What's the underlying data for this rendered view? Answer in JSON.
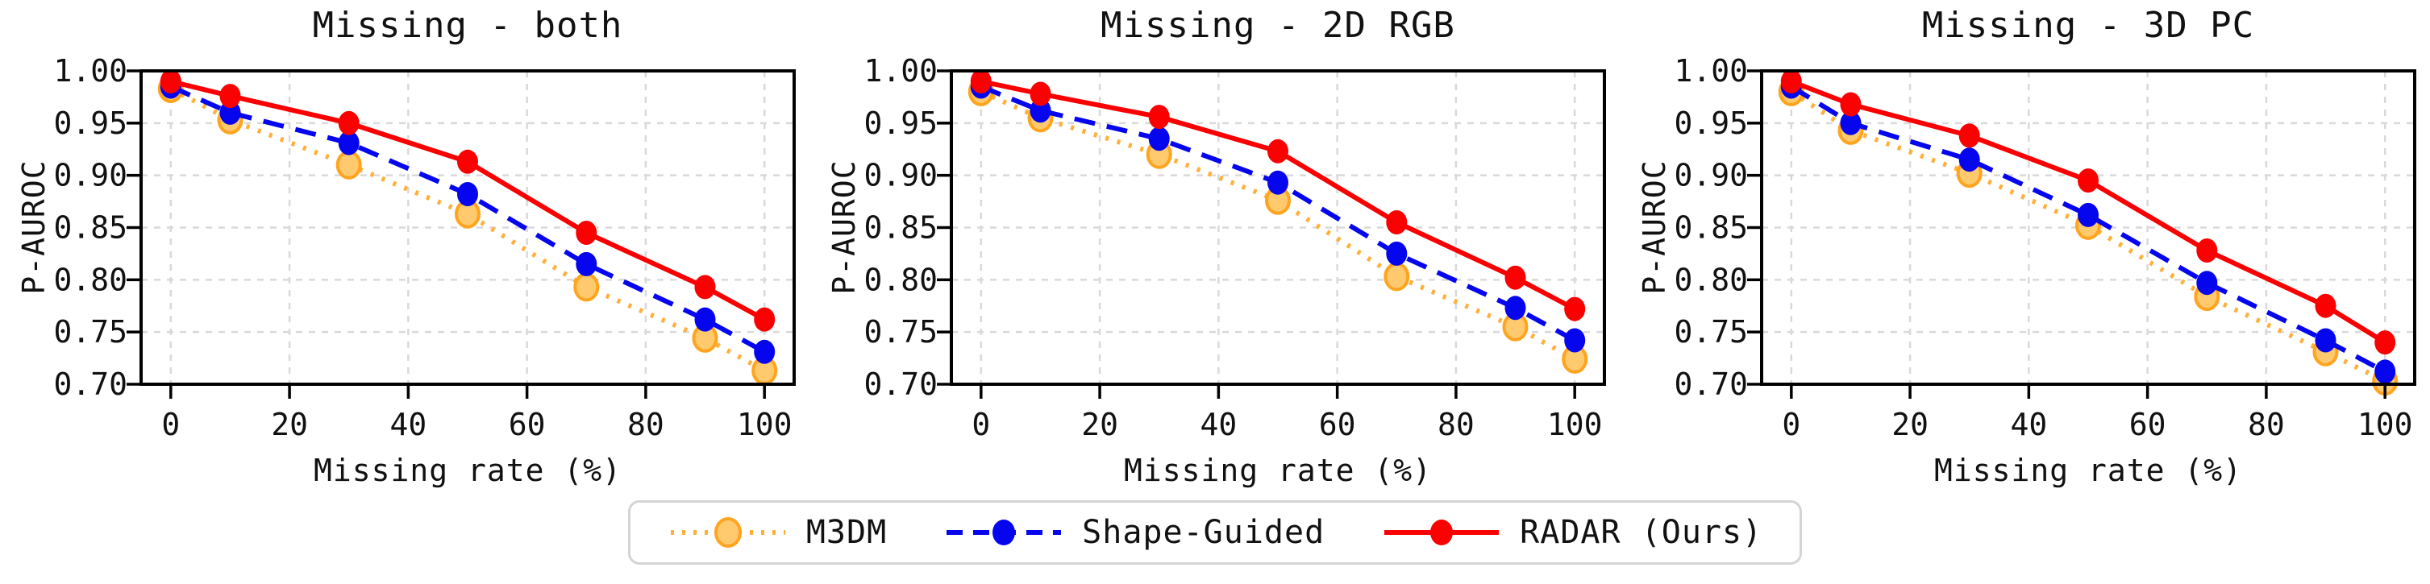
{
  "figure": {
    "background": "#ffffff",
    "grid_color": "#d9d9d9",
    "spine_color": "#000000",
    "ylabel": "P-AUROC",
    "xlabel": "Missing rate (%)"
  },
  "legend": {
    "position": "below-figure-center",
    "items": [
      {
        "label": "M3DM",
        "line_color": "#ffb03a",
        "dash": "dotted",
        "marker_fill": "#ffc96e",
        "marker_edge": "#ffa41f"
      },
      {
        "label": "Shape-Guided",
        "line_color": "#0505ee",
        "dash": "dashed",
        "marker_fill": "#0505ee",
        "marker_edge": ""
      },
      {
        "label": "RADAR (Ours)",
        "line_color": "#fa0000",
        "dash": "solid",
        "marker_fill": "#fa0000",
        "marker_edge": ""
      }
    ]
  },
  "chart_data": [
    {
      "type": "line",
      "title": "Missing - both",
      "xlabel": "Missing rate (%)",
      "ylabel": "P-AUROC",
      "x": [
        0,
        10,
        30,
        50,
        70,
        90,
        100
      ],
      "xlim": [
        -5,
        105
      ],
      "ylim": [
        0.7,
        1.0
      ],
      "xticks": [
        0,
        20,
        40,
        60,
        80,
        100
      ],
      "xtick_labels": [
        "0",
        "20",
        "40",
        "60",
        "80",
        "100"
      ],
      "yticks": [
        0.7,
        0.75,
        0.8,
        0.85,
        0.9,
        0.95,
        1.0
      ],
      "ytick_labels": [
        "0.70",
        "0.75",
        "0.80",
        "0.85",
        "0.90",
        "0.95",
        "1.00"
      ],
      "grid": true,
      "series": [
        {
          "name": "M3DM",
          "values": [
            0.983,
            0.953,
            0.91,
            0.863,
            0.793,
            0.744,
            0.713
          ]
        },
        {
          "name": "Shape-Guided",
          "values": [
            0.985,
            0.96,
            0.931,
            0.882,
            0.815,
            0.762,
            0.731
          ]
        },
        {
          "name": "RADAR (Ours)",
          "values": [
            0.99,
            0.976,
            0.95,
            0.913,
            0.845,
            0.793,
            0.762
          ]
        }
      ]
    },
    {
      "type": "line",
      "title": "Missing - 2D RGB",
      "xlabel": "Missing rate (%)",
      "ylabel": "P-AUROC",
      "x": [
        0,
        10,
        30,
        50,
        70,
        90,
        100
      ],
      "xlim": [
        -5,
        105
      ],
      "ylim": [
        0.7,
        1.0
      ],
      "xticks": [
        0,
        20,
        40,
        60,
        80,
        100
      ],
      "xtick_labels": [
        "0",
        "20",
        "40",
        "60",
        "80",
        "100"
      ],
      "yticks": [
        0.7,
        0.75,
        0.8,
        0.85,
        0.9,
        0.95,
        1.0
      ],
      "ytick_labels": [
        "0.70",
        "0.75",
        "0.80",
        "0.85",
        "0.90",
        "0.95",
        "1.00"
      ],
      "grid": true,
      "series": [
        {
          "name": "M3DM",
          "values": [
            0.98,
            0.955,
            0.92,
            0.876,
            0.803,
            0.755,
            0.724
          ]
        },
        {
          "name": "Shape-Guided",
          "values": [
            0.985,
            0.962,
            0.935,
            0.893,
            0.825,
            0.773,
            0.742
          ]
        },
        {
          "name": "RADAR (Ours)",
          "values": [
            0.99,
            0.978,
            0.956,
            0.923,
            0.855,
            0.802,
            0.772
          ]
        }
      ]
    },
    {
      "type": "line",
      "title": "Missing - 3D PC",
      "xlabel": "Missing rate (%)",
      "ylabel": "P-AUROC",
      "x": [
        0,
        10,
        30,
        50,
        70,
        90,
        100
      ],
      "xlim": [
        -5,
        105
      ],
      "ylim": [
        0.7,
        1.0
      ],
      "xticks": [
        0,
        20,
        40,
        60,
        80,
        100
      ],
      "xtick_labels": [
        "0",
        "20",
        "40",
        "60",
        "80",
        "100"
      ],
      "yticks": [
        0.7,
        0.75,
        0.8,
        0.85,
        0.9,
        0.95,
        1.0
      ],
      "ytick_labels": [
        "0.70",
        "0.75",
        "0.80",
        "0.85",
        "0.90",
        "0.95",
        "1.00"
      ],
      "grid": true,
      "series": [
        {
          "name": "M3DM",
          "values": [
            0.98,
            0.943,
            0.902,
            0.852,
            0.784,
            0.731,
            0.703
          ]
        },
        {
          "name": "Shape-Guided",
          "values": [
            0.985,
            0.95,
            0.915,
            0.862,
            0.797,
            0.742,
            0.712
          ]
        },
        {
          "name": "RADAR (Ours)",
          "values": [
            0.99,
            0.968,
            0.938,
            0.895,
            0.828,
            0.775,
            0.74
          ]
        }
      ]
    }
  ]
}
